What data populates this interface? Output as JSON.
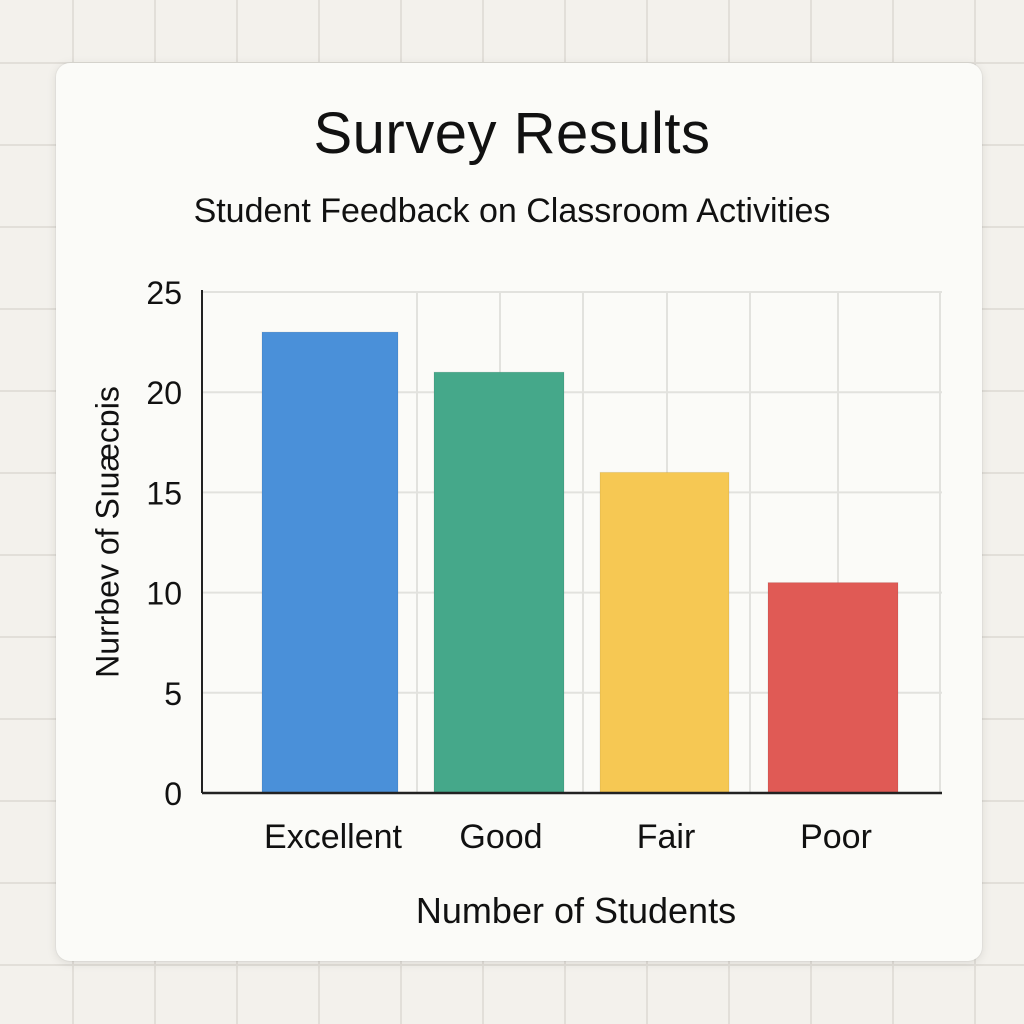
{
  "chart_data": {
    "type": "bar",
    "title": "Survey Results",
    "subtitle": "Student Feedback on Classroom Activities",
    "ylabel": "Nurrbev of Sıuæcɒis",
    "xlabel": "Number of Students",
    "categories": [
      "Excellent",
      "Good",
      "Fair",
      "Poor"
    ],
    "values": [
      23,
      21,
      16,
      10.5
    ],
    "colors": [
      "#4a90d9",
      "#45a88a",
      "#f6c853",
      "#e05a55"
    ],
    "ylim": [
      0,
      25
    ],
    "yticks": [
      "0",
      "5",
      "10",
      "15",
      "20",
      "25"
    ],
    "grid": true
  }
}
